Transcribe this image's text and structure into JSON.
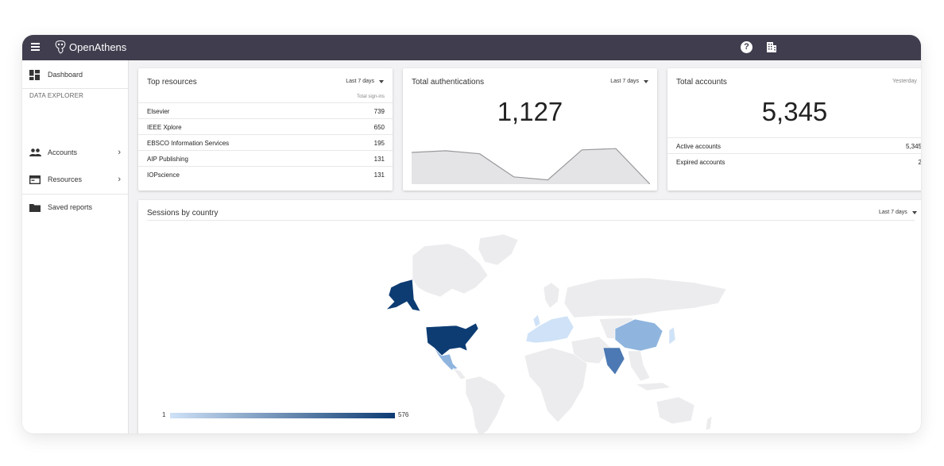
{
  "app": {
    "name": "OpenAthens"
  },
  "topbar": {
    "help_label": "?"
  },
  "sidebar": {
    "dashboard": "Dashboard",
    "section": "DATA EXPLORER",
    "accounts": "Accounts",
    "resources": "Resources",
    "saved_reports": "Saved reports"
  },
  "top_resources": {
    "title": "Top resources",
    "range": "Last 7 days",
    "column": "Total sign-ins",
    "rows": [
      {
        "name": "Elsevier",
        "value": "739"
      },
      {
        "name": "IEEE Xplore",
        "value": "650"
      },
      {
        "name": "EBSCO Information Services",
        "value": "195"
      },
      {
        "name": "AIP Publishing",
        "value": "131"
      },
      {
        "name": "IOPscience",
        "value": "131"
      }
    ]
  },
  "total_auth": {
    "title": "Total authentications",
    "range": "Last 7 days",
    "value": "1,127",
    "sparkline": [
      0.74,
      0.78,
      0.71,
      0.17,
      0.1,
      0.8,
      0.83,
      0.0
    ]
  },
  "total_accounts": {
    "title": "Total accounts",
    "range": "Yesterday",
    "value": "5,345",
    "rows": [
      {
        "name": "Active accounts",
        "value": "5,345"
      },
      {
        "name": "Expired accounts",
        "value": "2"
      }
    ]
  },
  "sessions": {
    "title": "Sessions by country",
    "range": "Last 7 days",
    "legend_min": "1",
    "legend_max": "576",
    "colors": {
      "max": "#0d3c73",
      "mid": "#8fb5de",
      "low": "#cfe2f7",
      "none": "#ececee"
    }
  }
}
